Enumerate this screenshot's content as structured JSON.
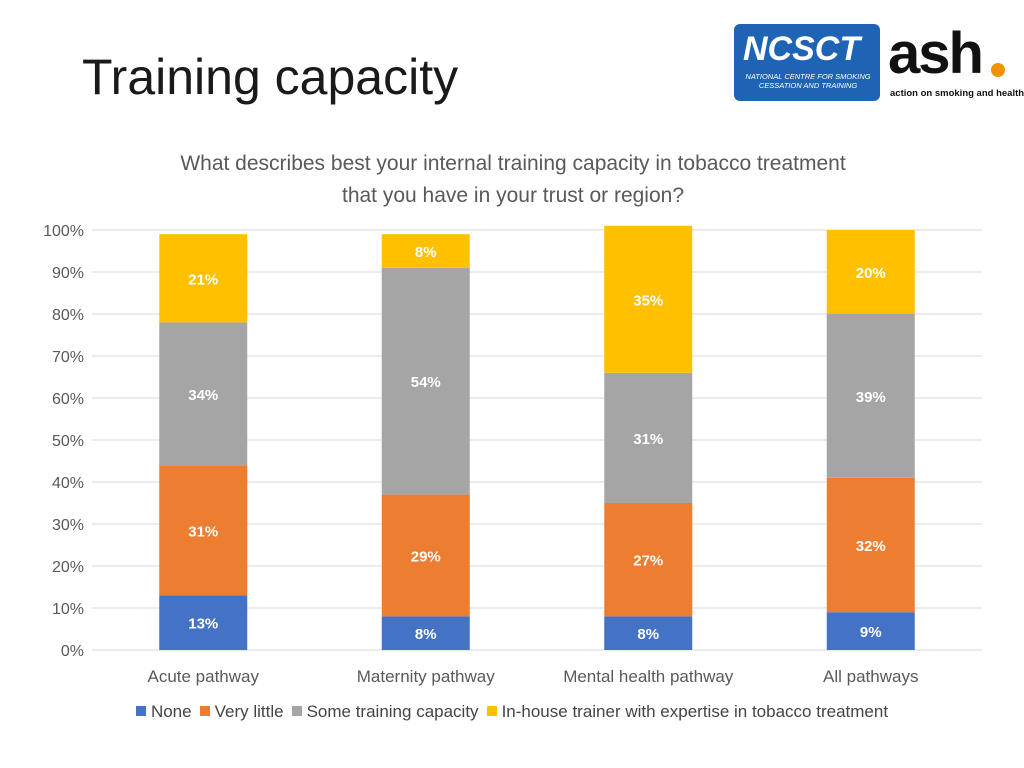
{
  "slide": {
    "title": "Training capacity"
  },
  "logos": {
    "ncsct": {
      "mark": "NCSCT",
      "line1": "NATIONAL CENTRE FOR SMOKING",
      "line2": "CESSATION AND TRAINING",
      "color": "#1f64b4"
    },
    "ash": {
      "mark": "ash",
      "tagline": "action on smoking and health",
      "dot_color": "#f39200"
    }
  },
  "chart_data": {
    "type": "bar",
    "stacked": true,
    "title": "What describes best your internal training capacity in tobacco treatment that you have in your trust or region?",
    "title_lines": [
      "What describes best your internal training capacity in tobacco treatment",
      "that you have in your trust or region?"
    ],
    "categories": [
      "Acute pathway",
      "Maternity pathway",
      "Mental health pathway",
      "All pathways"
    ],
    "ylim": [
      0,
      100
    ],
    "yticks": [
      "0%",
      "10%",
      "20%",
      "30%",
      "40%",
      "50%",
      "60%",
      "70%",
      "80%",
      "90%",
      "100%"
    ],
    "grid": true,
    "legend_position": "bottom",
    "series": [
      {
        "name": "None",
        "color": "#4472c4",
        "values": [
          13,
          8,
          8,
          9
        ]
      },
      {
        "name": "Very little",
        "color": "#ed7d31",
        "values": [
          31,
          29,
          27,
          32
        ]
      },
      {
        "name": "Some training capacity",
        "color": "#a5a5a5",
        "values": [
          34,
          54,
          31,
          39
        ]
      },
      {
        "name": "In-house trainer with expertise in tobacco treatment",
        "color": "#ffc000",
        "values": [
          21,
          8,
          35,
          20
        ]
      }
    ],
    "data_labels": [
      [
        "13%",
        "8%",
        "8%",
        "9%"
      ],
      [
        "31%",
        "29%",
        "27%",
        "32%"
      ],
      [
        "34%",
        "54%",
        "31%",
        "39%"
      ],
      [
        "21%",
        "8%",
        "35%",
        "20%"
      ]
    ]
  }
}
